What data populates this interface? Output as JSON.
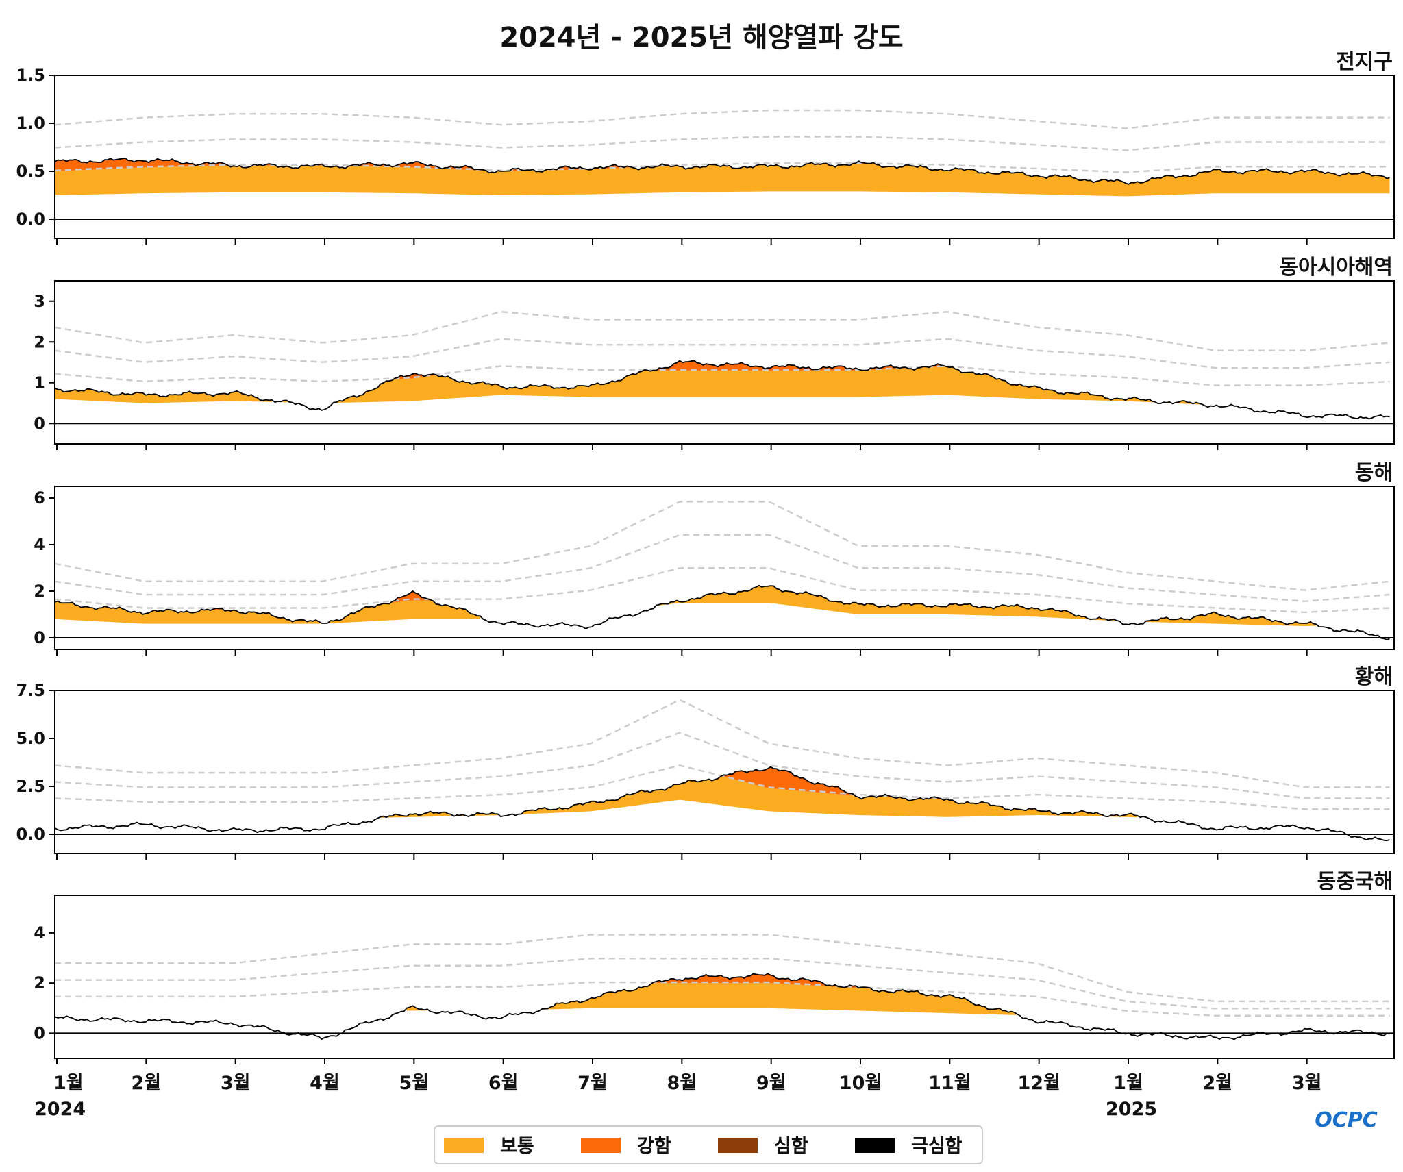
{
  "title": "2024년 - 2025년 해양열파 강도",
  "logo_text": "OCPC",
  "chart_data": {
    "type": "area",
    "x_axis": {
      "months": [
        "1월",
        "2월",
        "3월",
        "4월",
        "5월",
        "6월",
        "7월",
        "8월",
        "9월",
        "10월",
        "11월",
        "12월",
        "1월",
        "2월",
        "3월"
      ],
      "year_labels": [
        {
          "month_index": 0,
          "label": "2024"
        },
        {
          "month_index": 12,
          "label": "2025"
        }
      ],
      "range": [
        "2024-01-01",
        "2025-03-31"
      ]
    },
    "legend": {
      "placement": "bottom-center",
      "items": [
        {
          "label": "보통",
          "color": "#fbac20"
        },
        {
          "label": "강함",
          "color": "#fd6a08"
        },
        {
          "label": "심함",
          "color": "#8b3e09"
        },
        {
          "label": "극심함",
          "color": "#000000"
        }
      ]
    },
    "threshold_line_color": "#cccccc",
    "panels": [
      {
        "name": "전지구",
        "ylim": [
          -0.2,
          1.5
        ],
        "yticks": [
          "0.0",
          "0.5",
          "1.0",
          "1.5"
        ],
        "ytick_values": [
          0,
          0.5,
          1.0,
          1.5
        ],
        "months_x": [
          0,
          1,
          2,
          3,
          4,
          5,
          6,
          7,
          8,
          9,
          10,
          11,
          12,
          13,
          14,
          14.95
        ],
        "threshold_values": [
          0.25,
          0.27,
          0.28,
          0.28,
          0.27,
          0.25,
          0.26,
          0.28,
          0.29,
          0.29,
          0.28,
          0.26,
          0.24,
          0.27,
          0.27,
          0.27
        ],
        "sst_anomaly": [
          0.6,
          0.62,
          0.56,
          0.55,
          0.58,
          0.5,
          0.54,
          0.55,
          0.55,
          0.58,
          0.52,
          0.46,
          0.38,
          0.5,
          0.5,
          0.45
        ]
      },
      {
        "name": "동아시아해역",
        "ylim": [
          -0.5,
          3.5
        ],
        "yticks": [
          "0",
          "1",
          "2",
          "3"
        ],
        "ytick_values": [
          0,
          1,
          2,
          3
        ],
        "months_x": [
          0,
          1,
          2,
          3,
          4,
          5,
          6,
          7,
          8,
          9,
          10,
          11,
          12,
          13,
          14,
          14.95
        ],
        "threshold_values": [
          0.6,
          0.5,
          0.55,
          0.5,
          0.55,
          0.7,
          0.65,
          0.65,
          0.65,
          0.65,
          0.7,
          0.6,
          0.55,
          0.45,
          0.45,
          0.5
        ],
        "sst_anomaly": [
          0.85,
          0.7,
          0.75,
          0.35,
          1.25,
          0.9,
          0.9,
          1.5,
          1.4,
          1.35,
          1.4,
          0.85,
          0.6,
          0.45,
          0.2,
          0.15
        ]
      },
      {
        "name": "동해",
        "ylim": [
          -0.5,
          6.5
        ],
        "yticks": [
          "0",
          "2",
          "4",
          "6"
        ],
        "ytick_values": [
          0,
          2,
          4,
          6
        ],
        "months_x": [
          0,
          1,
          2,
          3,
          4,
          5,
          6,
          7,
          8,
          9,
          10,
          11,
          12,
          13,
          14,
          14.95
        ],
        "threshold_values": [
          0.8,
          0.6,
          0.6,
          0.6,
          0.8,
          0.8,
          1.0,
          1.5,
          1.5,
          1.0,
          1.0,
          0.9,
          0.7,
          0.6,
          0.5,
          0.6
        ],
        "sst_anomaly": [
          1.5,
          1.1,
          1.2,
          0.6,
          1.9,
          0.6,
          0.5,
          1.6,
          2.2,
          1.4,
          1.4,
          1.3,
          0.6,
          1.0,
          0.6,
          0.0
        ]
      },
      {
        "name": "황해",
        "ylim": [
          -1.0,
          7.5
        ],
        "yticks": [
          "0.0",
          "2.5",
          "5.0",
          "7.5"
        ],
        "ytick_values": [
          0,
          2.5,
          5.0,
          7.5
        ],
        "months_x": [
          0,
          1,
          2,
          3,
          4,
          5,
          6,
          7,
          8,
          9,
          10,
          11,
          12,
          13,
          14,
          14.95
        ],
        "threshold_values": [
          0.9,
          0.8,
          0.8,
          0.8,
          0.9,
          1.0,
          1.2,
          1.8,
          1.2,
          1.0,
          0.9,
          1.0,
          0.9,
          0.8,
          0.6,
          0.6
        ],
        "sst_anomaly": [
          0.3,
          0.5,
          0.2,
          0.3,
          1.1,
          1.0,
          1.6,
          2.6,
          3.5,
          2.0,
          1.8,
          1.2,
          1.0,
          0.3,
          0.4,
          -0.4
        ]
      },
      {
        "name": "동중국해",
        "ylim": [
          -1.0,
          5.5
        ],
        "yticks": [
          "0",
          "2",
          "4"
        ],
        "ytick_values": [
          0,
          2,
          4
        ],
        "months_x": [
          0,
          1,
          2,
          3,
          4,
          5,
          6,
          7,
          8,
          9,
          10,
          11,
          12,
          13,
          14,
          14.95
        ],
        "threshold_values": [
          0.7,
          0.7,
          0.7,
          0.8,
          0.9,
          0.9,
          1.0,
          1.0,
          1.0,
          0.9,
          0.8,
          0.7,
          0.4,
          0.3,
          0.3,
          0.3
        ],
        "sst_anomaly": [
          0.6,
          0.5,
          0.4,
          -0.2,
          1.0,
          0.6,
          1.4,
          2.2,
          2.3,
          1.8,
          1.5,
          0.5,
          0.0,
          -0.2,
          0.1,
          0.0
        ]
      }
    ]
  }
}
